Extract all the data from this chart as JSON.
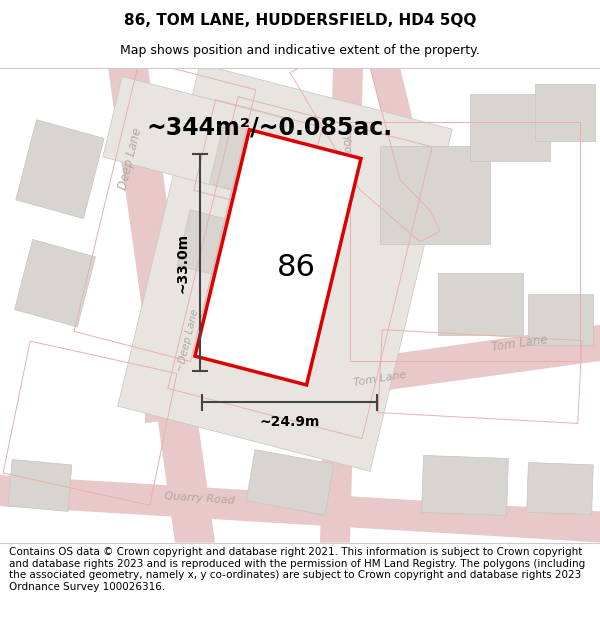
{
  "title": "86, TOM LANE, HUDDERSFIELD, HD4 5QQ",
  "subtitle": "Map shows position and indicative extent of the property.",
  "footer": "Contains OS data © Crown copyright and database right 2021. This information is subject to Crown copyright and database rights 2023 and is reproduced with the permission of HM Land Registry. The polygons (including the associated geometry, namely x, y co-ordinates) are subject to Crown copyright and database rights 2023 Ordnance Survey 100026316.",
  "area_label": "~344m²/~0.085ac.",
  "number_label": "86",
  "dim_h": "~33.0m",
  "dim_w": "~24.9m",
  "bg_color": "#f0eeec",
  "road_color": "#e8c8c8",
  "road_edge_color": "#d4a8a8",
  "building_color": "#d8d5d0",
  "building_edge": "#c8c5c0",
  "parcel_color": "#ede8e4",
  "parcel_edge": "#c8c0bc",
  "plot_fill": "#ffffff",
  "plot_edge": "#dd0000",
  "cadastral_color": "#e8b0b0",
  "dim_color": "#444444",
  "street_color": "#b0a8a0",
  "title_fontsize": 11,
  "subtitle_fontsize": 9,
  "footer_fontsize": 7.5,
  "area_fontsize": 17,
  "number_fontsize": 22,
  "dim_fontsize": 10
}
